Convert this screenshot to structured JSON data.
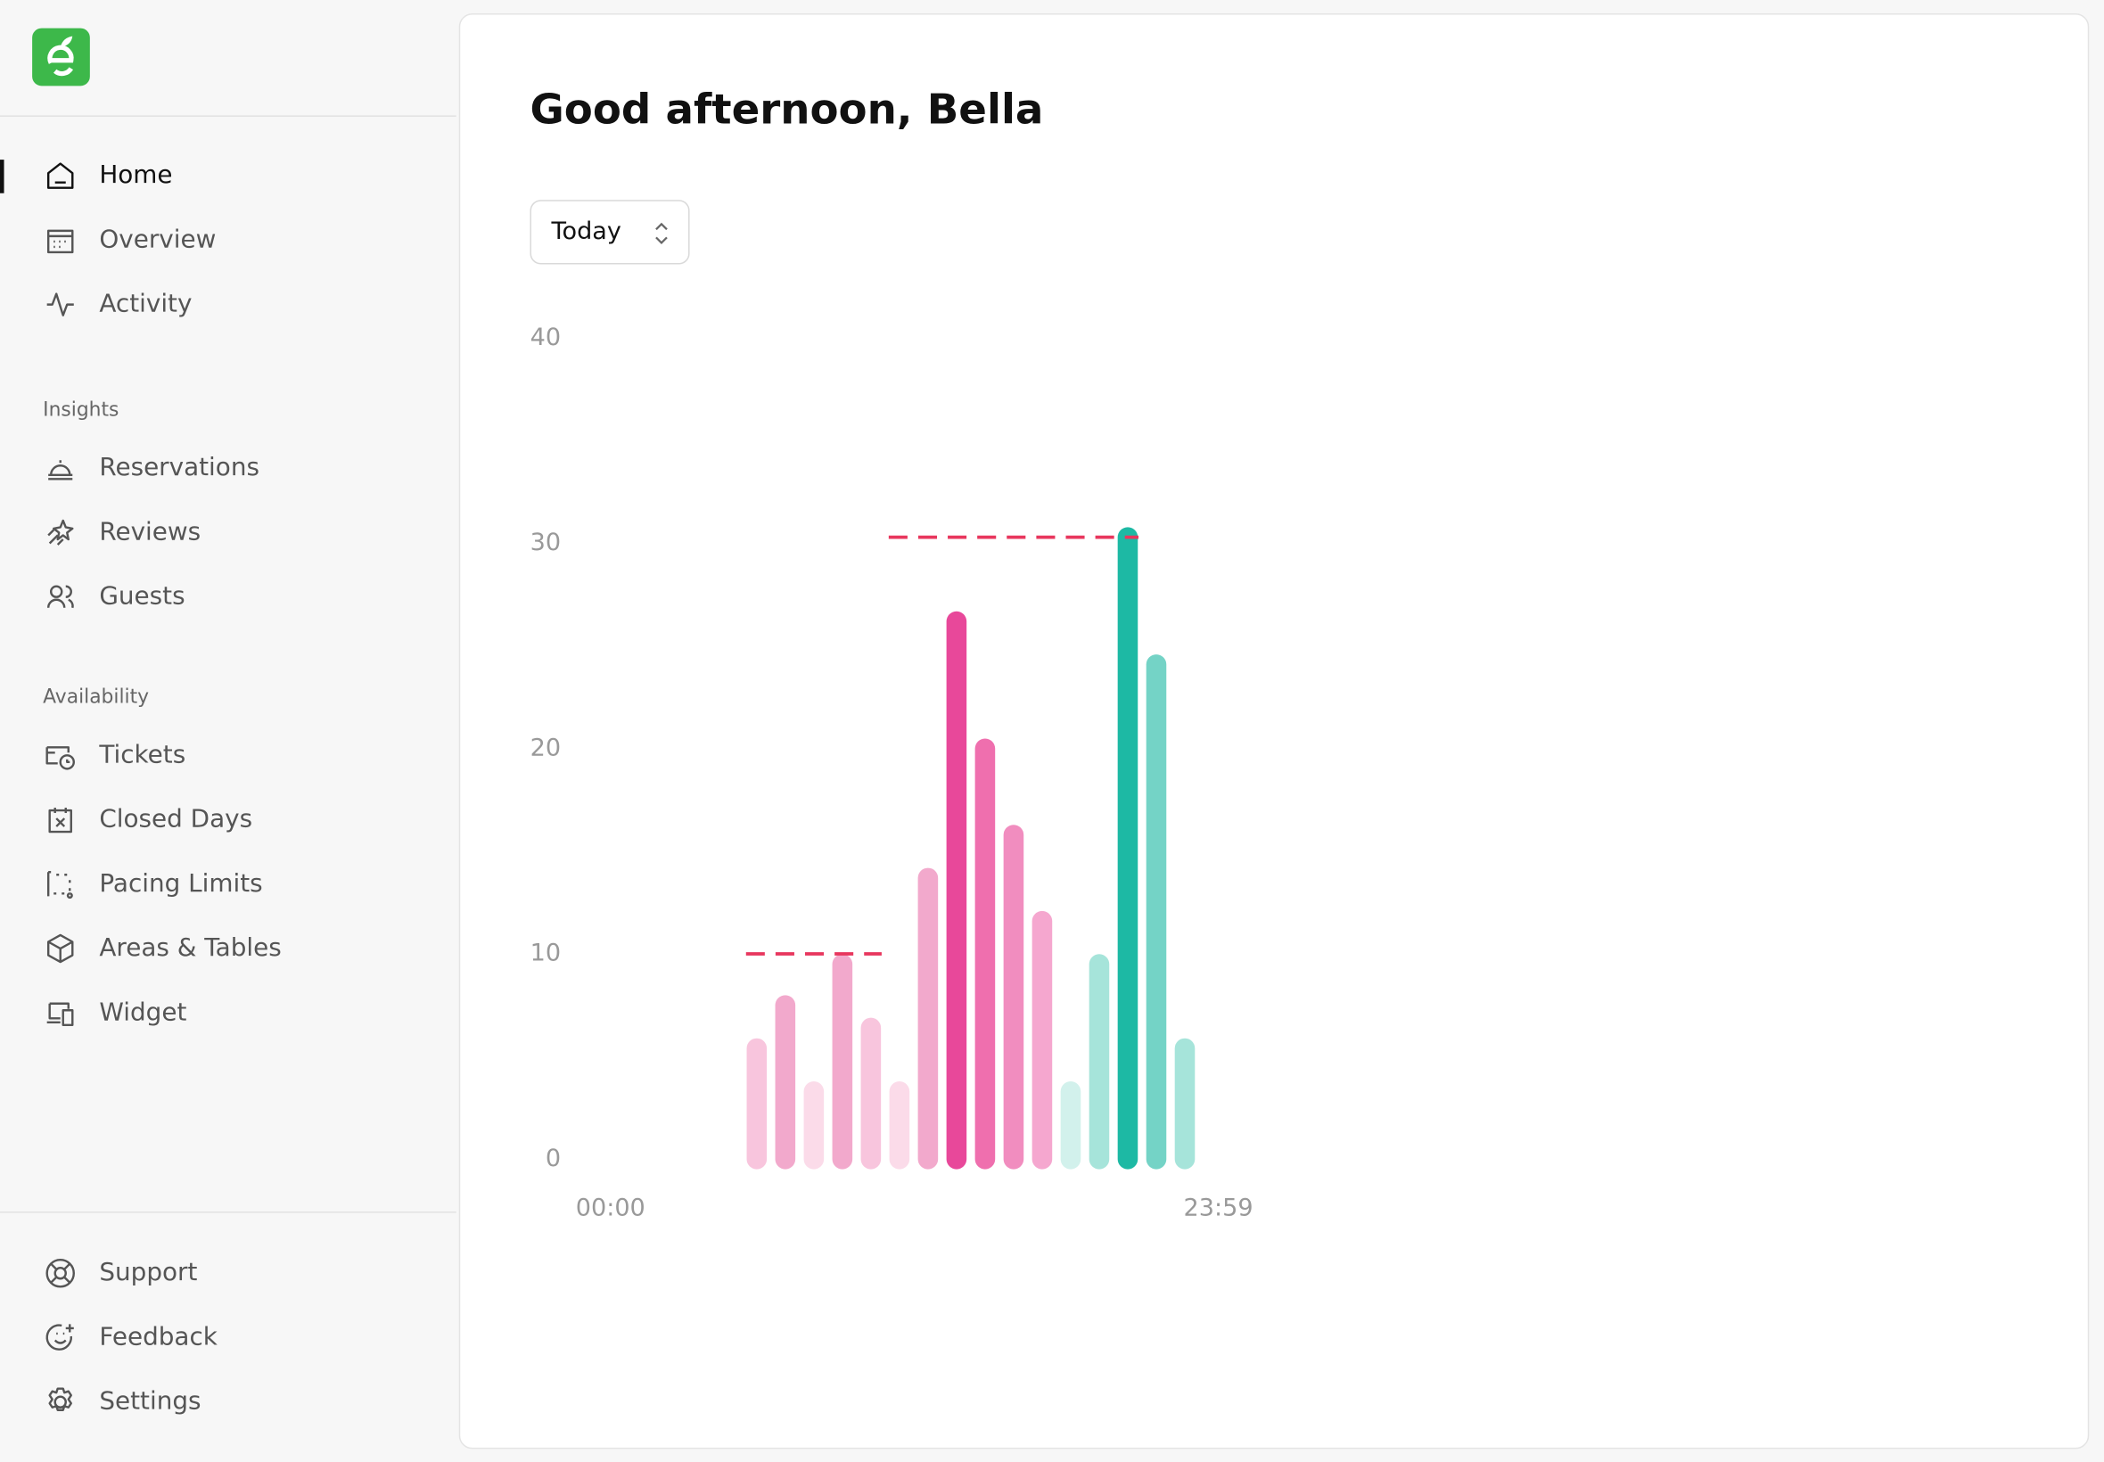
{
  "sidebar": {
    "main_nav": [
      "Home",
      "Overview",
      "Activity"
    ],
    "sections": [
      {
        "title": "Insights",
        "items": [
          "Reservations",
          "Reviews",
          "Guests"
        ]
      },
      {
        "title": "Availability",
        "items": [
          "Tickets",
          "Closed Days",
          "Pacing Limits",
          "Areas & Tables",
          "Widget"
        ]
      }
    ],
    "footer_nav": [
      "Support",
      "Feedback",
      "Settings"
    ]
  },
  "header": {
    "title": "Good afternoon, Bella"
  },
  "period_select": {
    "label": "Today"
  },
  "chart_data": {
    "type": "bar",
    "values": [
      5.4,
      7.5,
      3.3,
      9.5,
      6.4,
      3.3,
      13.7,
      26.2,
      20,
      15.8,
      11.6,
      3.3,
      9.5,
      30.3,
      24.1,
      5.4
    ],
    "colors": [
      "#f8c5dd",
      "#f2a9cc",
      "#fbdbe9",
      "#f2a9cc",
      "#f8c5dd",
      "#fbdbe9",
      "#f2a9cc",
      "#e8489a",
      "#ef6fae",
      "#f18dbf",
      "#f5a7cf",
      "#d2f1ec",
      "#a6e4da",
      "#1db9a4",
      "#74d3c6",
      "#a6e4da"
    ],
    "xlabels": [
      "00:00",
      "23:59"
    ],
    "ylim": [
      0,
      40
    ],
    "yticks": [
      0,
      10,
      20,
      30,
      40
    ],
    "grid": false,
    "reference_lines": [
      {
        "value": 10,
        "start": 0,
        "end": 4,
        "color": "#e8365d"
      },
      {
        "value": 30.3,
        "start": 5,
        "end": 13,
        "color": "#e8365d"
      }
    ]
  }
}
